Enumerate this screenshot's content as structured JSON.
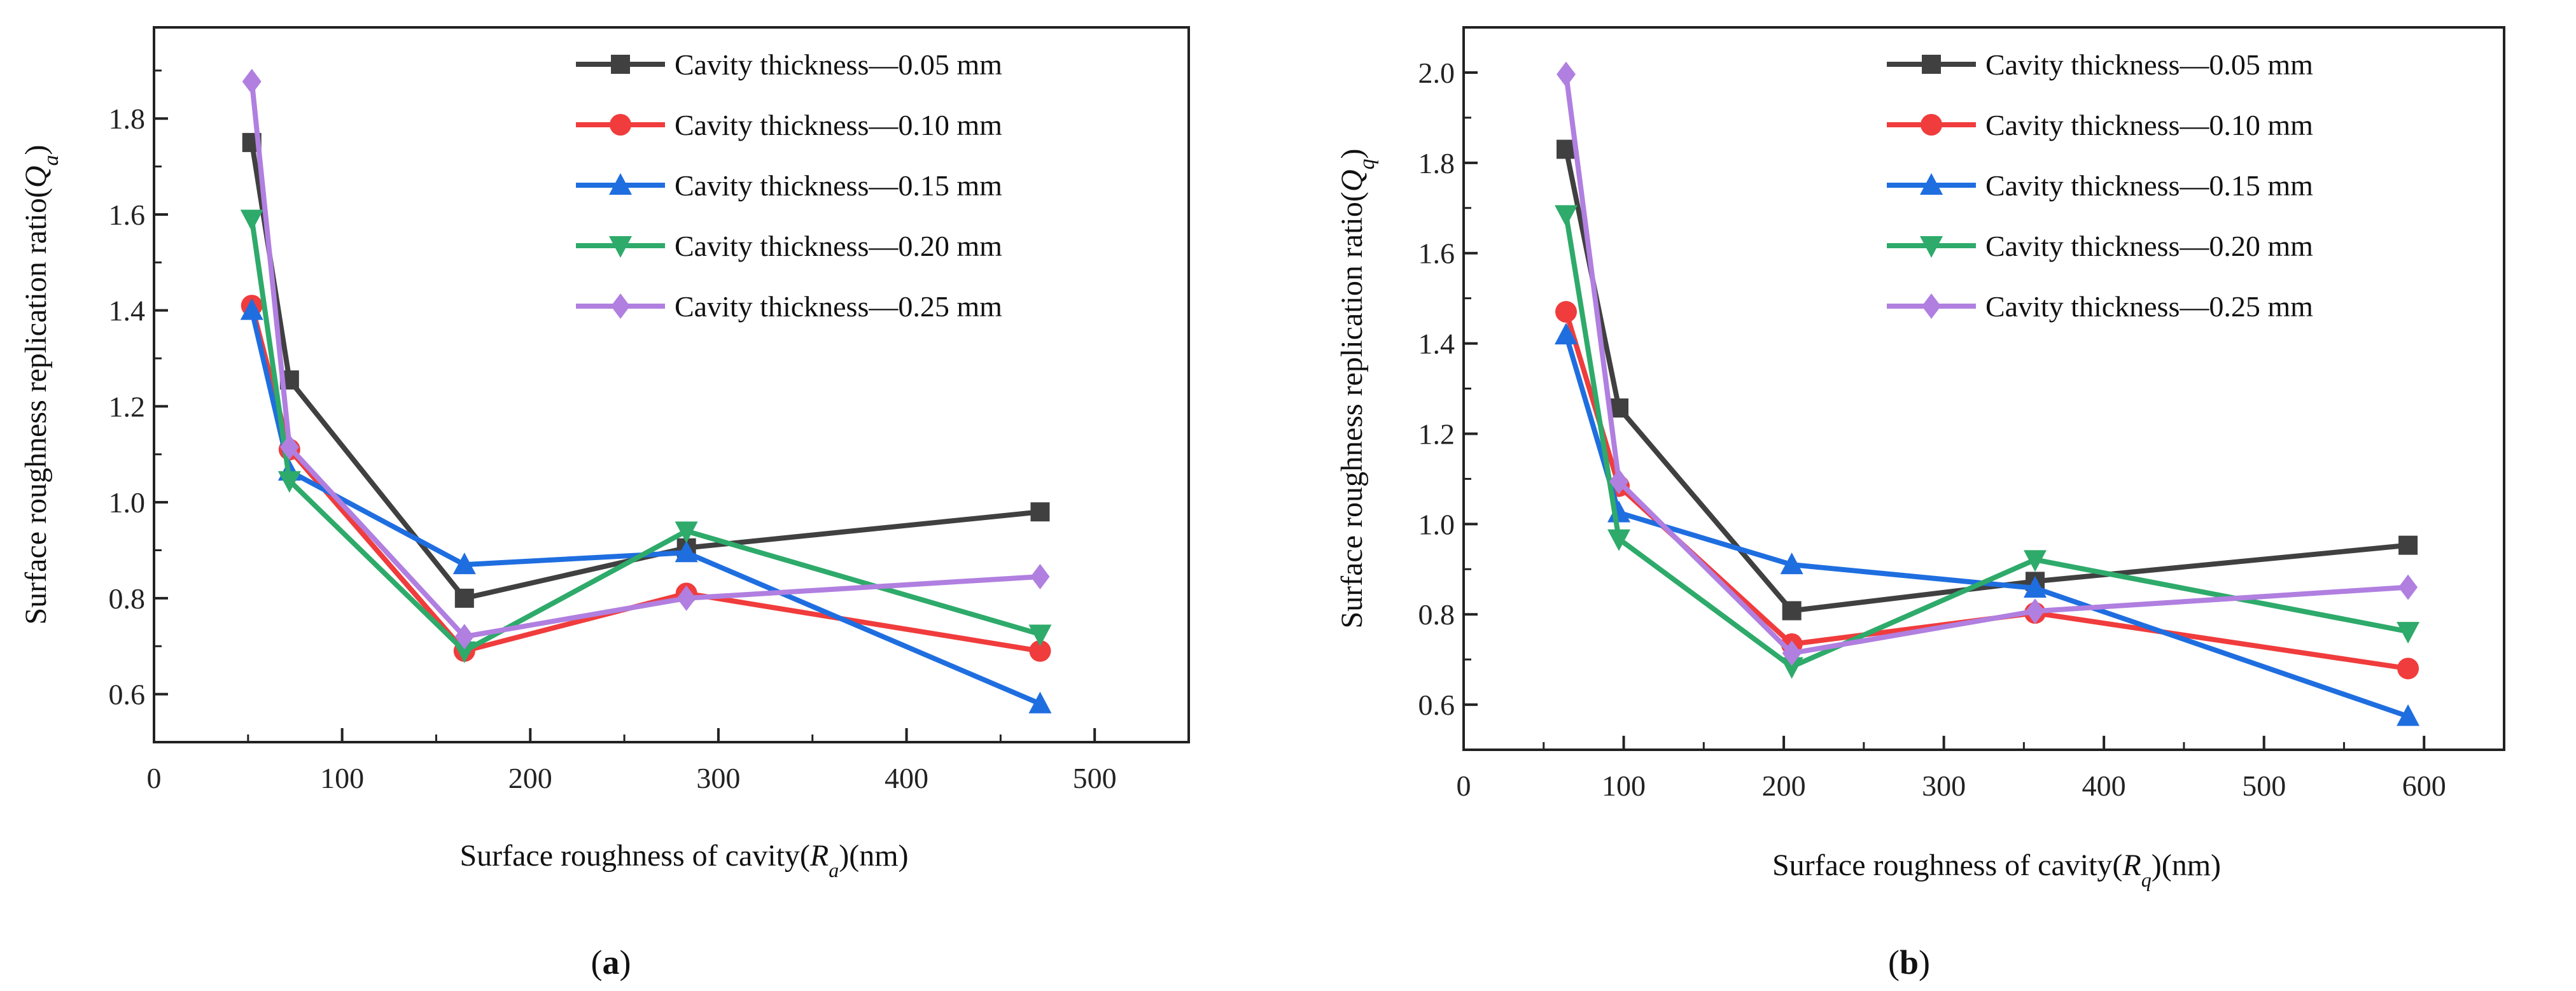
{
  "chart_data": [
    {
      "type": "line",
      "panel_label": "(a)",
      "caption_letter": "a",
      "xlabel": "Surface roughness of cavity(Ra)(nm)",
      "xlabel_parts": {
        "pre": "Surface roughness of cavity(",
        "var": "R",
        "sub": "a",
        "post": ")(nm)"
      },
      "ylabel": "Surface roughness replication ratio(Qa)",
      "ylabel_parts": {
        "pre": "Surface roughness replication ratio(",
        "var": "Q",
        "sub": "a",
        "post": ")"
      },
      "xlim": [
        0,
        550
      ],
      "ylim": [
        0.5,
        1.99
      ],
      "xticks": [
        0,
        100,
        200,
        300,
        400,
        500
      ],
      "xtick_labels": [
        "0",
        "100",
        "200",
        "300",
        "400",
        "500"
      ],
      "yticks": [
        0.6,
        0.8,
        1.0,
        1.2,
        1.4,
        1.6,
        1.8
      ],
      "ytick_labels": [
        "0.6",
        "0.8",
        "1.0",
        "1.2",
        "1.4",
        "1.6",
        "1.8"
      ],
      "grid": false,
      "legend_position": "top-right",
      "x": [
        52,
        72,
        165,
        283,
        471
      ],
      "series": [
        {
          "name": "Cavity thickness—0.05 mm",
          "color": "#404040",
          "marker": "square",
          "values": [
            1.75,
            1.255,
            0.8,
            0.905,
            0.98
          ]
        },
        {
          "name": "Cavity thickness—0.10 mm",
          "color": "#f03c3c",
          "marker": "circle",
          "values": [
            1.41,
            1.11,
            0.69,
            0.81,
            0.69
          ]
        },
        {
          "name": "Cavity thickness—0.15 mm",
          "color": "#1f6ee0",
          "marker": "triangle-up",
          "values": [
            1.4,
            1.065,
            0.87,
            0.895,
            0.58
          ]
        },
        {
          "name": "Cavity thickness—0.20 mm",
          "color": "#2eaa6a",
          "marker": "triangle-down",
          "values": [
            1.59,
            1.045,
            0.69,
            0.94,
            0.725
          ]
        },
        {
          "name": "Cavity thickness—0.25 mm",
          "color": "#b07fe0",
          "marker": "diamond",
          "values": [
            1.877,
            1.115,
            0.72,
            0.8,
            0.845
          ]
        }
      ]
    },
    {
      "type": "line",
      "panel_label": "(b)",
      "caption_letter": "b",
      "xlabel": "Surface roughness of cavity(Rq)(nm)",
      "xlabel_parts": {
        "pre": "Surface roughness of cavity(",
        "var": "R",
        "sub": "q",
        "post": ")(nm)"
      },
      "ylabel": "Surface roughness replication ratio(Qq)",
      "ylabel_parts": {
        "pre": "Surface roughness replication ratio(",
        "var": "Q",
        "sub": "q",
        "post": ")"
      },
      "xlim": [
        0,
        650
      ],
      "ylim": [
        0.5,
        2.1
      ],
      "xticks": [
        0,
        100,
        200,
        300,
        400,
        500,
        600
      ],
      "xtick_labels": [
        "0",
        "100",
        "200",
        "300",
        "400",
        "500",
        "600"
      ],
      "yticks": [
        0.6,
        0.8,
        1.0,
        1.2,
        1.4,
        1.6,
        1.8,
        2.0
      ],
      "ytick_labels": [
        "0.6",
        "0.8",
        "1.0",
        "1.2",
        "1.4",
        "1.6",
        "1.8",
        "2.0"
      ],
      "grid": false,
      "legend_position": "top-right",
      "x": [
        64,
        97,
        205,
        357,
        590
      ],
      "series": [
        {
          "name": "Cavity thickness—0.05 mm",
          "color": "#404040",
          "marker": "square",
          "values": [
            1.83,
            1.257,
            0.808,
            0.873,
            0.953
          ]
        },
        {
          "name": "Cavity thickness—0.10 mm",
          "color": "#f03c3c",
          "marker": "circle",
          "values": [
            1.47,
            1.084,
            0.734,
            0.803,
            0.68
          ]
        },
        {
          "name": "Cavity thickness—0.15 mm",
          "color": "#1f6ee0",
          "marker": "triangle-up",
          "values": [
            1.419,
            1.025,
            0.91,
            0.858,
            0.574
          ]
        },
        {
          "name": "Cavity thickness—0.20 mm",
          "color": "#2eaa6a",
          "marker": "triangle-down",
          "values": [
            1.685,
            0.967,
            0.684,
            0.921,
            0.762
          ]
        },
        {
          "name": "Cavity thickness—0.25 mm",
          "color": "#b07fe0",
          "marker": "diamond",
          "values": [
            1.996,
            1.094,
            0.714,
            0.807,
            0.86
          ]
        }
      ]
    }
  ]
}
